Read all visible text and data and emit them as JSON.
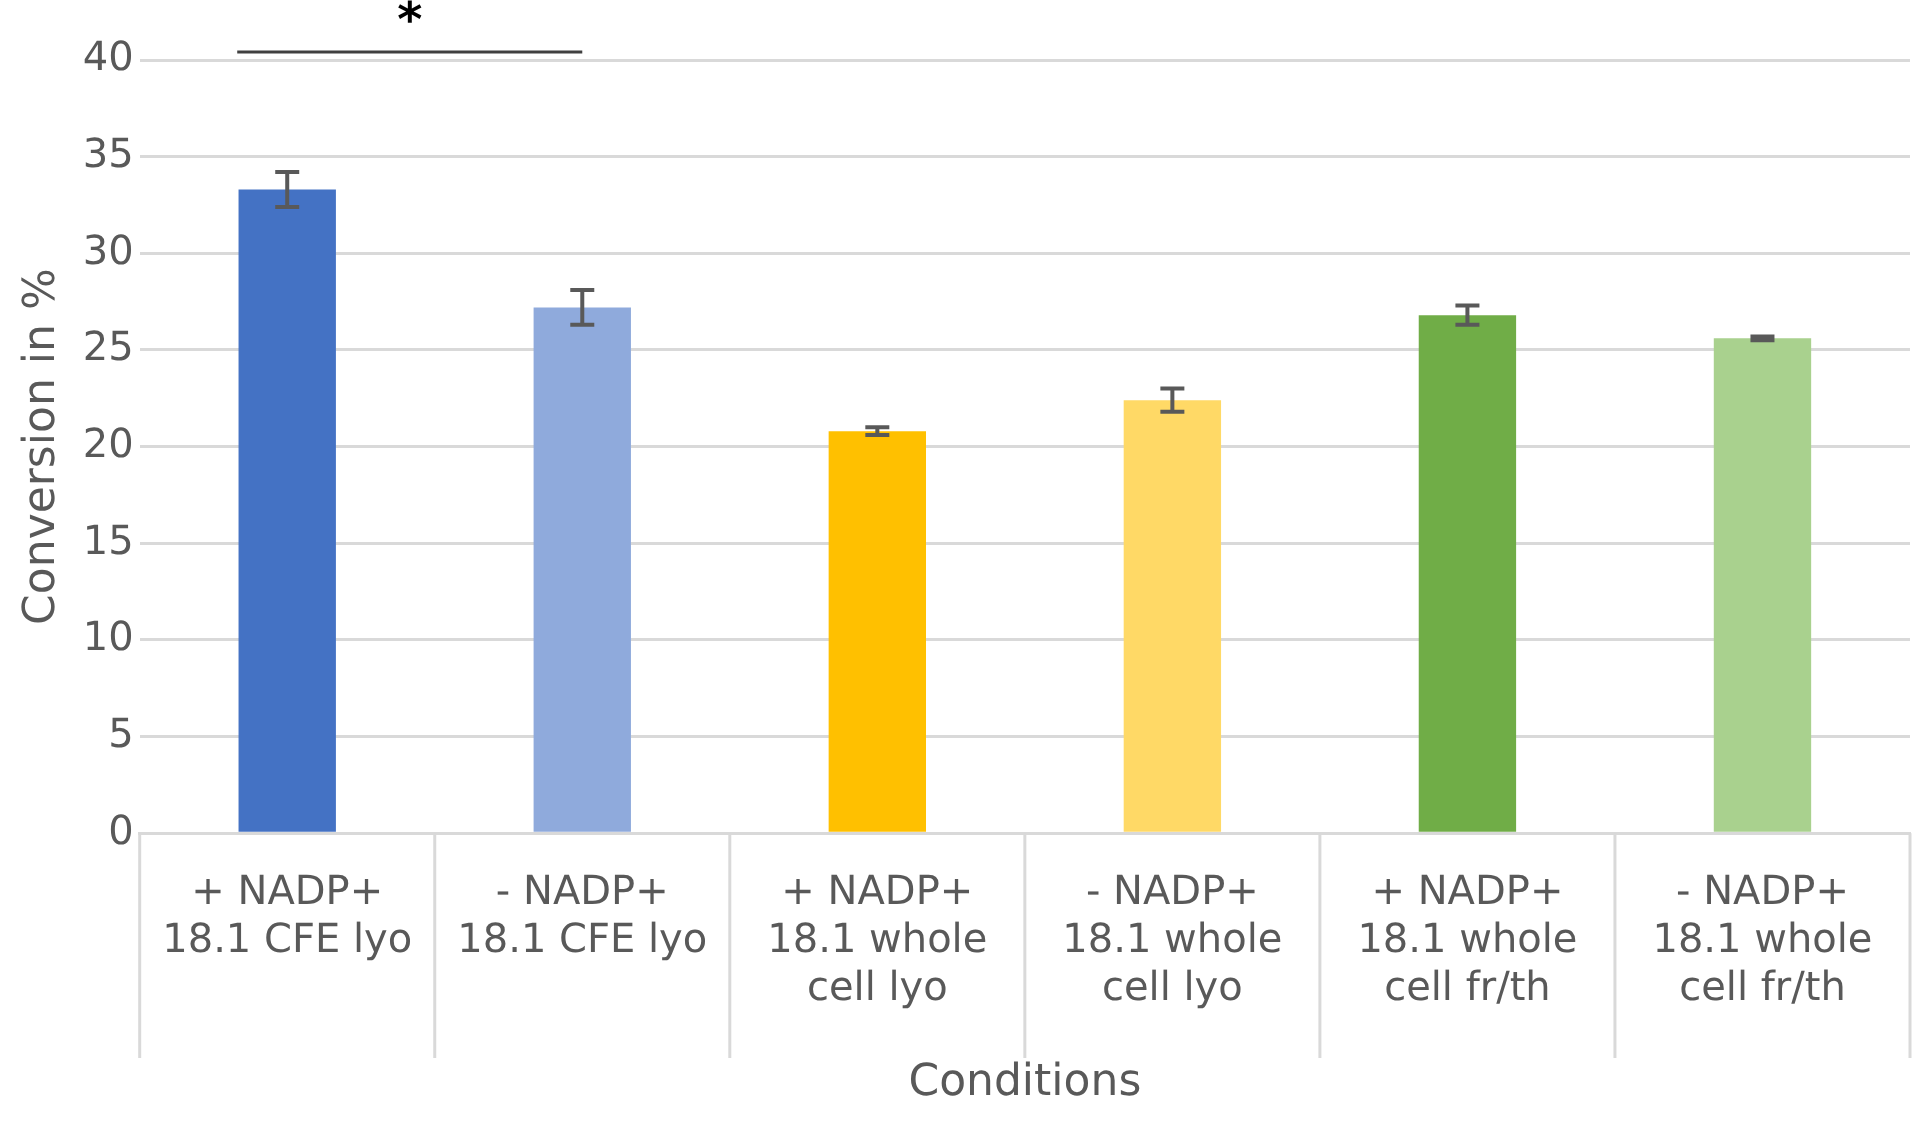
{
  "chart_data": {
    "type": "bar",
    "xlabel": "Conditions",
    "ylabel": "Conversion in %",
    "categories": [
      "+ NADP+\n18.1 CFE lyo",
      "- NADP+\n18.1 CFE lyo",
      "+ NADP+\n18.1 whole cell lyo",
      "- NADP+\n18.1 whole cell lyo",
      "+ NADP+\n18.1 whole cell fr/th",
      "- NADP+\n18.1 whole cell fr/th"
    ],
    "values": [
      33.3,
      27.2,
      20.8,
      22.4,
      26.8,
      25.6
    ],
    "errors": [
      0.9,
      0.9,
      0.2,
      0.6,
      0.5,
      0.1
    ],
    "colors": [
      "#4472c4",
      "#8faadc",
      "#ffc000",
      "#ffd966",
      "#70ad47",
      "#a9d18e"
    ],
    "ylim": [
      0,
      40
    ],
    "yticks": [
      0,
      5,
      10,
      15,
      20,
      25,
      30,
      35,
      40
    ],
    "grid": "y",
    "legend": false,
    "annotations": [
      "*"
    ]
  }
}
